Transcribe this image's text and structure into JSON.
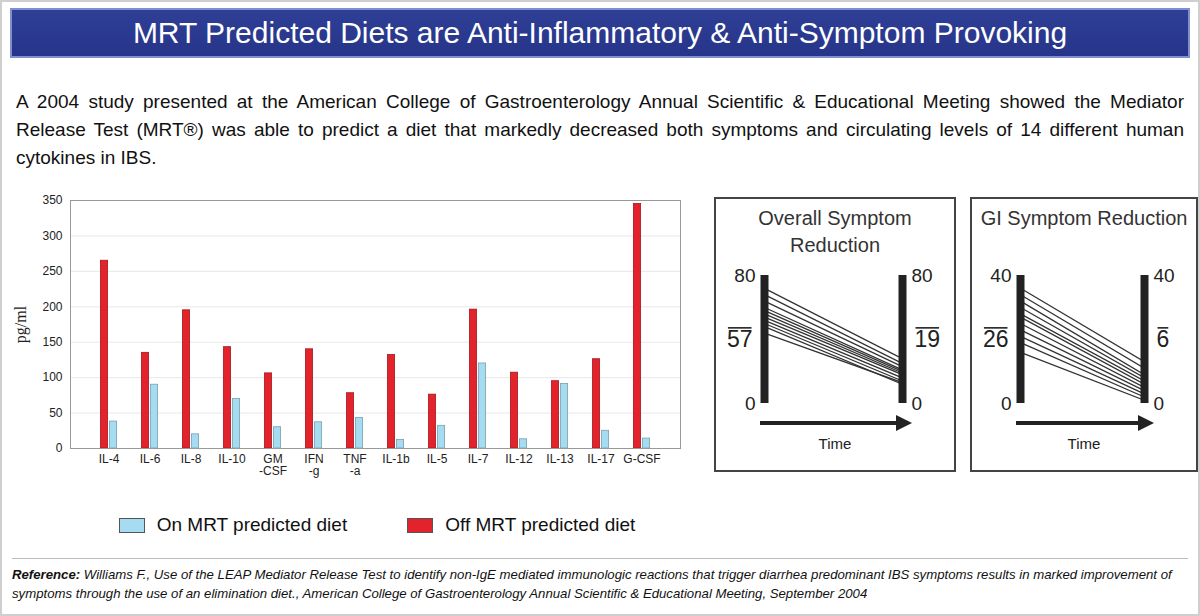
{
  "header": {
    "title": "MRT Predicted Diets are Anti-Inflammatory & Anti-Symptom Provoking"
  },
  "text": "A 2004 study presented at the American College of Gastroenterology Annual Scientific & Educational Meeting showed the Mediator Release Test (MRT®) was able to predict a diet that markedly decreased both symptoms and circulating levels of 14 different human cytokines in IBS.",
  "reference": {
    "label": "Reference:",
    "text": "Williams F., Use of the LEAP Mediator Release Test to identify non-IgE mediated immunologic reactions that trigger diarrhea predominant IBS symptoms results in marked improvement of symptoms through the use of an elimination diet., American College of Gastroenterology Annual Scientific & Educational Meeting, September 2004"
  },
  "chart_data": [
    {
      "type": "bar",
      "categories": [
        "IL-4",
        "IL-6",
        "IL-8",
        "IL-10",
        "GM\n-CSF",
        "IFN\n-g",
        "TNF\n-a",
        "IL-1b",
        "IL-5",
        "IL-7",
        "IL-12",
        "IL-13",
        "IL-17",
        "G-CSF"
      ],
      "series": [
        {
          "name": "On MRT predicted diet",
          "color": "#a6dcf1",
          "values": [
            38,
            90,
            20,
            70,
            30,
            37,
            43,
            12,
            32,
            120,
            13,
            91,
            25,
            14
          ]
        },
        {
          "name": "Off MRT predicted diet",
          "color": "#e3232b",
          "values": [
            265,
            135,
            195,
            143,
            106,
            140,
            78,
            132,
            76,
            196,
            107,
            95,
            126,
            345
          ]
        }
      ],
      "ylabel": "pg/ml",
      "ylim": [
        0,
        350
      ],
      "yticks": [
        0,
        50,
        100,
        150,
        200,
        250,
        300,
        350
      ],
      "grid": true,
      "legend": "bottom"
    },
    {
      "type": "line",
      "title": "Overall Symptom Reduction",
      "xlabel": "Time",
      "categories": [
        null,
        null
      ],
      "color": "#333333",
      "ylim": [
        0,
        80
      ],
      "yticks": [
        0,
        80
      ],
      "tick_labels": "y",
      "means": [
        57,
        19
      ],
      "series": [
        {
          "values": [
            72,
            28
          ]
        },
        {
          "values": [
            68,
            25
          ]
        },
        {
          "values": [
            64,
            23
          ]
        },
        {
          "values": [
            60,
            21
          ]
        },
        {
          "values": [
            58,
            20
          ]
        },
        {
          "values": [
            56,
            19
          ]
        },
        {
          "values": [
            54,
            18
          ]
        },
        {
          "values": [
            52,
            16
          ]
        },
        {
          "values": [
            50,
            14
          ]
        },
        {
          "values": [
            48,
            12
          ]
        },
        {
          "values": [
            44,
            13
          ]
        }
      ]
    },
    {
      "type": "line",
      "title": "GI Symptom Reduction",
      "xlabel": "Time",
      "categories": [
        null,
        null
      ],
      "color": "#333333",
      "ylim": [
        0,
        40
      ],
      "yticks": [
        0,
        40
      ],
      "tick_labels": "y",
      "means": [
        26,
        6
      ],
      "series": [
        {
          "values": [
            36,
            13
          ]
        },
        {
          "values": [
            34,
            11
          ]
        },
        {
          "values": [
            32,
            9
          ]
        },
        {
          "values": [
            30,
            8
          ]
        },
        {
          "values": [
            28,
            7
          ]
        },
        {
          "values": [
            27,
            6
          ]
        },
        {
          "values": [
            25,
            5
          ]
        },
        {
          "values": [
            23,
            4
          ]
        },
        {
          "values": [
            21,
            3
          ]
        },
        {
          "values": [
            19,
            2
          ]
        },
        {
          "values": [
            16,
            1
          ]
        }
      ]
    }
  ]
}
